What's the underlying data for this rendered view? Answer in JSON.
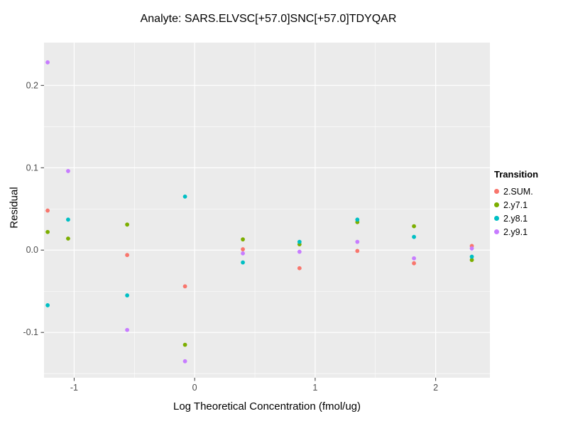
{
  "title": "Analyte: SARS.ELVSC[+57.0]SNC[+57.0]TDYQAR",
  "chart_data": {
    "type": "scatter",
    "title": "Analyte: SARS.ELVSC[+57.0]SNC[+57.0]TDYQAR",
    "xlabel": "Log Theoretical Concentration (fmol/ug)",
    "ylabel": "Residual",
    "xlim": [
      -1.25,
      2.45
    ],
    "ylim": [
      -0.155,
      0.252
    ],
    "grid": true,
    "panel_background": "#EBEBEB",
    "gridline_major_color": "#FFFFFF",
    "gridline_minor_color": "#F7F7F7",
    "tick_label_color": "#4D4D4D",
    "x_ticks": {
      "values": [
        -1,
        0,
        1,
        2
      ],
      "labels": [
        "-1",
        "0",
        "1",
        "2"
      ]
    },
    "x_minor_ticks": [
      -0.5,
      0.5,
      1.5
    ],
    "y_ticks": {
      "values": [
        -0.1,
        0.0,
        0.1,
        0.2
      ],
      "labels": [
        "-0.1",
        "0.0",
        "0.1",
        "0.2"
      ]
    },
    "y_minor_ticks": [
      -0.15,
      -0.05,
      0.05,
      0.15
    ],
    "legend": {
      "title": "Transition",
      "position": "right"
    },
    "series": [
      {
        "name": "2.SUM.",
        "color": "#F8766D",
        "points": [
          [
            -1.22,
            0.048
          ],
          [
            -0.56,
            -0.006
          ],
          [
            -0.08,
            -0.044
          ],
          [
            0.4,
            0.001
          ],
          [
            0.87,
            -0.022
          ],
          [
            1.35,
            -0.001
          ],
          [
            1.82,
            -0.016
          ],
          [
            2.3,
            0.005
          ]
        ]
      },
      {
        "name": "2.y7.1",
        "color": "#7CAE00",
        "points": [
          [
            -1.22,
            0.022
          ],
          [
            -1.05,
            0.014
          ],
          [
            -0.56,
            0.031
          ],
          [
            -0.08,
            -0.115
          ],
          [
            0.4,
            0.013
          ],
          [
            0.87,
            0.007
          ],
          [
            1.35,
            0.034
          ],
          [
            1.82,
            0.029
          ],
          [
            2.3,
            -0.012
          ]
        ]
      },
      {
        "name": "2.y8.1",
        "color": "#00BFC4",
        "points": [
          [
            -1.22,
            -0.067
          ],
          [
            -1.05,
            0.037
          ],
          [
            -0.56,
            -0.055
          ],
          [
            -0.08,
            0.065
          ],
          [
            0.4,
            -0.015
          ],
          [
            0.87,
            0.01
          ],
          [
            1.35,
            0.037
          ],
          [
            1.82,
            0.016
          ],
          [
            2.3,
            -0.008
          ]
        ]
      },
      {
        "name": "2.y9.1",
        "color": "#C77CFF",
        "points": [
          [
            -1.22,
            0.228
          ],
          [
            -1.05,
            0.096
          ],
          [
            -0.56,
            -0.097
          ],
          [
            -0.08,
            -0.135
          ],
          [
            0.4,
            -0.004
          ],
          [
            0.87,
            -0.002
          ],
          [
            1.35,
            0.01
          ],
          [
            1.82,
            -0.01
          ],
          [
            2.3,
            0.002
          ]
        ]
      }
    ]
  }
}
